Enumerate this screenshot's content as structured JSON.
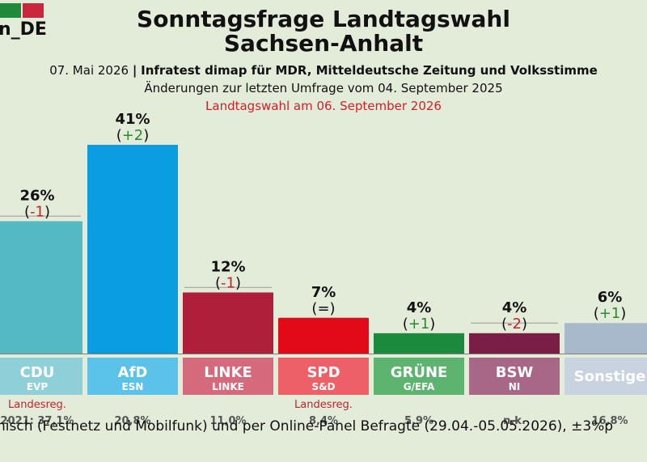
{
  "header": {
    "logo_text": "n_DE",
    "logo_colors": [
      "#1f8a3a",
      "#c8273d"
    ],
    "title_line1": "Sonntagsfrage Landtagswahl",
    "title_line2": "Sachsen-Anhalt",
    "date": "07. Mai 2026",
    "separator": "|",
    "institute": "Infratest dimap für MDR, Mitteldeutsche Zeitung und Volksstimme",
    "changes_note": "Änderungen zur letzten Umfrage vom 04. September 2025",
    "election_note": "Landtagswahl am 06. September 2026"
  },
  "chart_data": {
    "type": "bar",
    "ylim": [
      0,
      45
    ],
    "categories": [
      "CDU",
      "AfD",
      "LINKE",
      "SPD",
      "GRÜNE",
      "BSW",
      "Sonstige"
    ],
    "groups": [
      "EVP",
      "ESN",
      "LINKE",
      "S&D",
      "G/EFA",
      "NI",
      ""
    ],
    "values": [
      26,
      41,
      12,
      7,
      4,
      4,
      6
    ],
    "value_labels": [
      "26%",
      "41%",
      "12%",
      "7%",
      "4%",
      "4%",
      "6%"
    ],
    "changes": [
      "(-1)",
      "(+2)",
      "(-1)",
      "(=)",
      "(+1)",
      "(-2)",
      "(+1)"
    ],
    "change_signs": [
      "neg",
      "pos",
      "neg",
      "zero",
      "pos",
      "neg",
      "pos"
    ],
    "previous_values": [
      27,
      39,
      13,
      7,
      3,
      6,
      5
    ],
    "colors": [
      "#55b9c4",
      "#0a9ee0",
      "#b01f3a",
      "#e20a18",
      "#1c8a3c",
      "#7a1e45",
      "#a9b9cc"
    ],
    "label_colors": [
      "#8fd0d8",
      "#5bc3ea",
      "#d46a7c",
      "#ee6068",
      "#5db46e",
      "#a86787",
      "#c8d3df"
    ],
    "government_label": "Landesreg.",
    "government": [
      true,
      false,
      false,
      true,
      false,
      false,
      false
    ],
    "result_2021": [
      "2021: 37,1%",
      "20,8%",
      "11,0%",
      "8,4%",
      "5,9%",
      "n.k.",
      "16,8%"
    ]
  },
  "footer": {
    "method": "nisch (Festnetz und Mobilfunk) und per Online-Panel Befragte (29.04.-05.05.2026), ±3%p"
  }
}
